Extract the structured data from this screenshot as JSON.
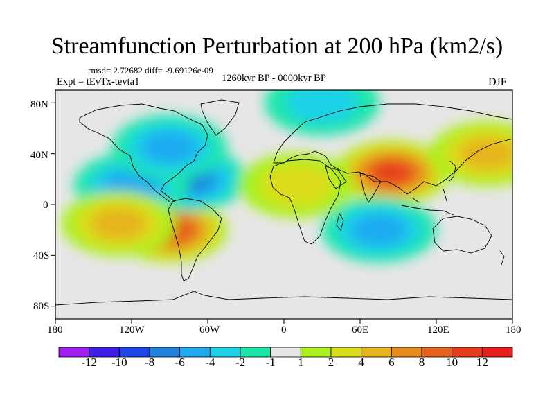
{
  "title": "Streamfunction Perturbation at 200 hPa (km2/s)",
  "stats": "rmsd= 2.72682  diff= -9.69126e-09",
  "experiment": "Expt = tEvTx-tevta1",
  "period": "1260kyr BP - 0000kyr BP",
  "season": "DJF",
  "lat_labels": [
    "80N",
    "40N",
    "0",
    "40S",
    "80S"
  ],
  "lon_labels": [
    "180",
    "120W",
    "60W",
    "0",
    "60E",
    "120E",
    "180"
  ],
  "colorbar": {
    "labels": [
      "-12",
      "-10",
      "-8",
      "-6",
      "-4",
      "-2",
      "-1",
      "1",
      "2",
      "4",
      "6",
      "8",
      "10",
      "12"
    ],
    "colors": [
      "#a020f0",
      "#3c1ee6",
      "#1e46e6",
      "#1e82dc",
      "#1eaaf0",
      "#1ed2e6",
      "#1ee6aa",
      "#e6e6e6",
      "#aaf01e",
      "#dcdc1e",
      "#e6b41e",
      "#e68c1e",
      "#e6641e",
      "#e63c1e",
      "#e61e1e"
    ]
  },
  "chart_data": {
    "type": "heatmap",
    "title": "Streamfunction Perturbation at 200 hPa (km2/s)",
    "xlabel": "",
    "ylabel": "",
    "xlim": [
      -180,
      180
    ],
    "ylim": [
      -90,
      90
    ],
    "features": [
      {
        "name": "south-america-max",
        "lon": -90,
        "lat": -20,
        "value": 11
      },
      {
        "name": "south-asia-max",
        "lon": 85,
        "lat": 25,
        "value": 10
      },
      {
        "name": "caribbean-min",
        "lon": -75,
        "lat": 20,
        "value": -7
      },
      {
        "name": "east-pacific-min",
        "lon": -120,
        "lat": 15,
        "value": -5
      },
      {
        "name": "indian-ocean-min",
        "lon": 75,
        "lat": -20,
        "value": -5
      },
      {
        "name": "north-atlantic-min",
        "lon": -90,
        "lat": 45,
        "value": -4
      },
      {
        "name": "arctic-min",
        "lon": 30,
        "lat": 80,
        "value": -3
      },
      {
        "name": "south-pacific-max",
        "lon": -130,
        "lat": -15,
        "value": 5
      },
      {
        "name": "north-africa-max",
        "lon": 10,
        "lat": 15,
        "value": 3
      },
      {
        "name": "west-pacific-max",
        "lon": 160,
        "lat": 40,
        "value": 4
      }
    ]
  }
}
